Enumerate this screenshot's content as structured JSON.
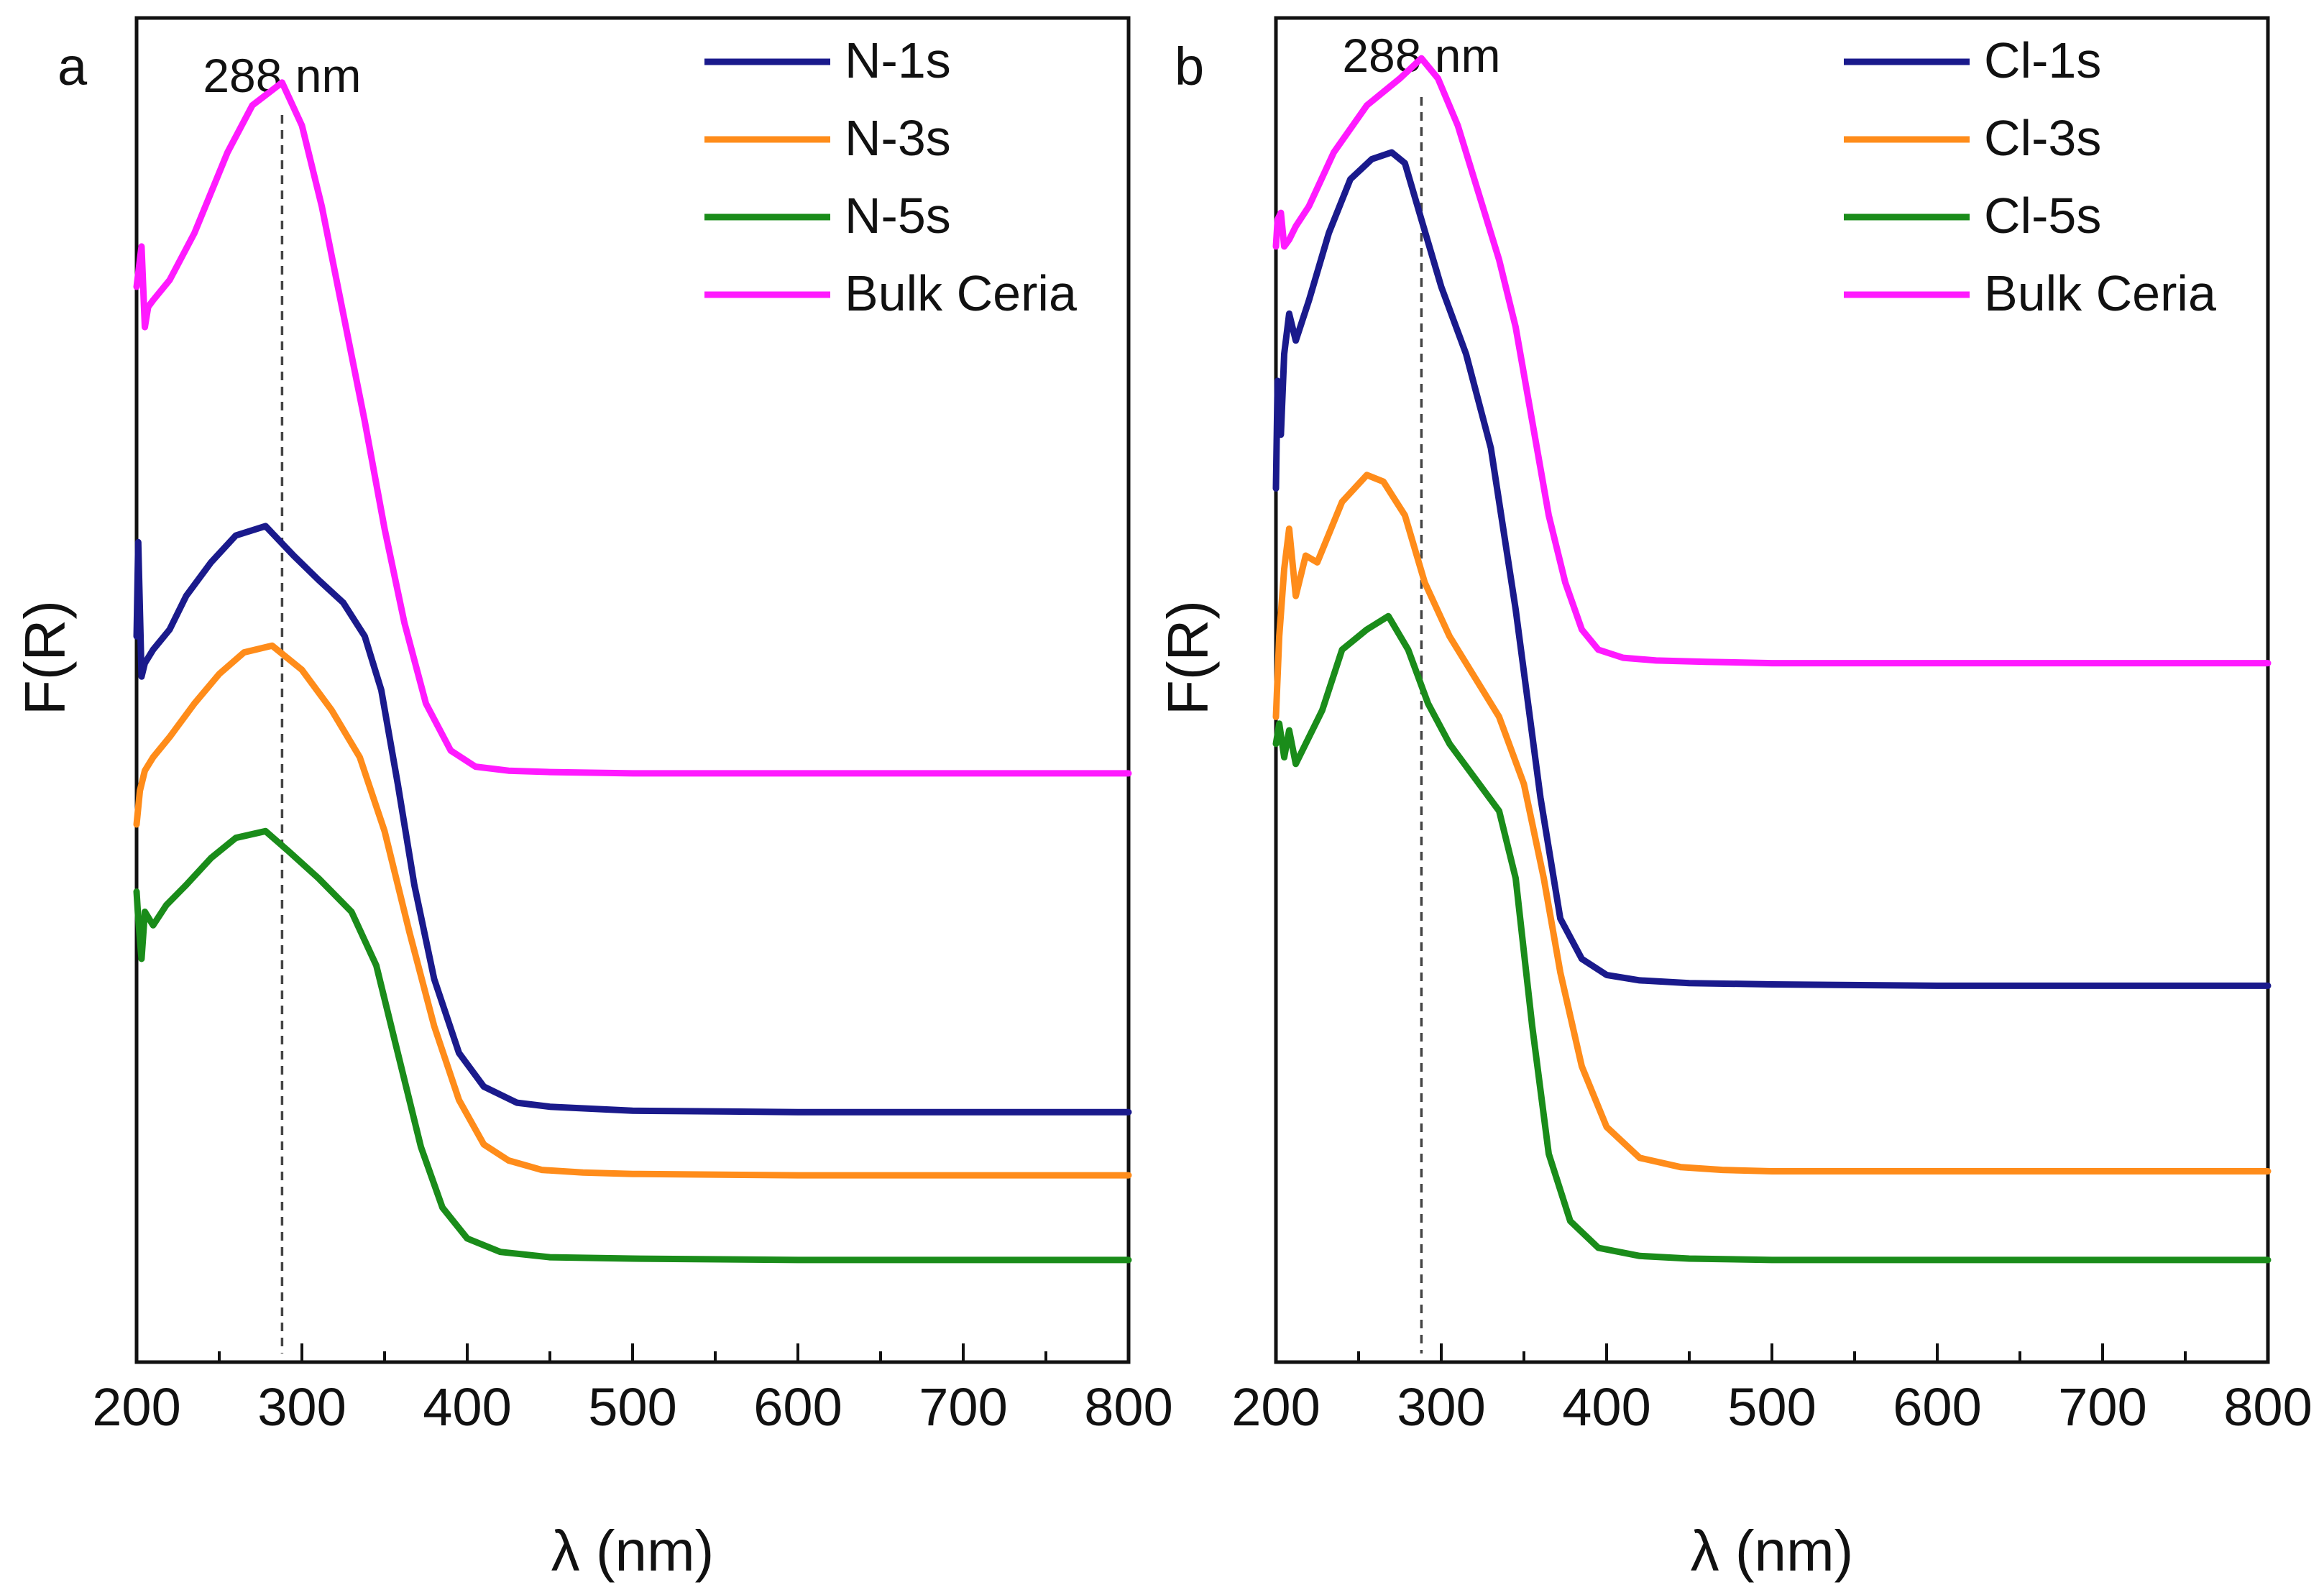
{
  "chart_data": [
    {
      "panel_label": "a",
      "type": "line",
      "title": "",
      "xlabel": "λ (nm)",
      "ylabel": "F(R)",
      "xlim": [
        200,
        800
      ],
      "ylim": [
        0,
        10
      ],
      "xticks": [
        200,
        300,
        400,
        500,
        600,
        700,
        800
      ],
      "yticks_shown": false,
      "legend_position": "top-right",
      "annotation": {
        "text": "288 nm",
        "x": 288
      },
      "series": [
        {
          "name": "N-1s",
          "color": "#1a1a8c",
          "x": [
            200,
            201,
            203,
            205,
            210,
            220,
            230,
            245,
            260,
            278,
            295,
            310,
            325,
            338,
            348,
            358,
            368,
            380,
            395,
            410,
            430,
            450,
            500,
            600,
            700,
            800
          ],
          "y": [
            5.4,
            6.1,
            5.1,
            5.2,
            5.3,
            5.45,
            5.7,
            5.95,
            6.15,
            6.22,
            6.0,
            5.82,
            5.65,
            5.4,
            5.0,
            4.3,
            3.55,
            2.85,
            2.3,
            2.05,
            1.93,
            1.9,
            1.87,
            1.86,
            1.86,
            1.86
          ]
        },
        {
          "name": "N-3s",
          "color": "#ff8c1a",
          "x": [
            200,
            202,
            205,
            210,
            220,
            235,
            250,
            265,
            282,
            300,
            318,
            335,
            350,
            365,
            380,
            395,
            410,
            425,
            445,
            470,
            500,
            600,
            700,
            800
          ],
          "y": [
            4.0,
            4.25,
            4.4,
            4.5,
            4.65,
            4.9,
            5.12,
            5.28,
            5.33,
            5.15,
            4.85,
            4.5,
            3.95,
            3.2,
            2.5,
            1.95,
            1.62,
            1.5,
            1.43,
            1.41,
            1.4,
            1.39,
            1.39,
            1.39
          ]
        },
        {
          "name": "N-5s",
          "color": "#1a8c1a",
          "x": [
            200,
            201,
            203,
            205,
            210,
            218,
            230,
            245,
            260,
            278,
            292,
            310,
            330,
            345,
            358,
            372,
            385,
            400,
            420,
            450,
            500,
            600,
            700,
            800
          ],
          "y": [
            3.5,
            3.3,
            3.0,
            3.35,
            3.25,
            3.4,
            3.55,
            3.75,
            3.9,
            3.95,
            3.8,
            3.6,
            3.35,
            2.95,
            2.3,
            1.6,
            1.15,
            0.92,
            0.82,
            0.78,
            0.77,
            0.76,
            0.76,
            0.76
          ]
        },
        {
          "name": "Bulk Ceria",
          "color": "#ff1aff",
          "x": [
            200,
            203,
            205,
            207,
            210,
            220,
            235,
            255,
            270,
            288,
            300,
            312,
            325,
            338,
            350,
            362,
            375,
            390,
            405,
            425,
            450,
            500,
            600,
            700,
            800
          ],
          "y": [
            8.0,
            8.3,
            7.7,
            7.85,
            7.9,
            8.05,
            8.4,
            9.0,
            9.35,
            9.52,
            9.2,
            8.6,
            7.8,
            7.0,
            6.2,
            5.5,
            4.9,
            4.55,
            4.43,
            4.4,
            4.39,
            4.38,
            4.38,
            4.38,
            4.38
          ]
        }
      ]
    },
    {
      "panel_label": "b",
      "type": "line",
      "title": "",
      "xlabel": "λ (nm)",
      "ylabel": "F(R)",
      "xlim": [
        200,
        800
      ],
      "ylim": [
        0,
        10
      ],
      "xticks": [
        200,
        300,
        400,
        500,
        600,
        700,
        800
      ],
      "yticks_shown": false,
      "legend_position": "top-right",
      "annotation": {
        "text": "288 nm",
        "x": 288
      },
      "series": [
        {
          "name": "Cl-1s",
          "color": "#1a1a8c",
          "x": [
            200,
            201,
            203,
            205,
            208,
            212,
            220,
            232,
            245,
            258,
            270,
            278,
            288,
            300,
            315,
            330,
            345,
            360,
            372,
            385,
            400,
            420,
            450,
            500,
            600,
            700,
            800
          ],
          "y": [
            6.5,
            7.3,
            6.9,
            7.5,
            7.8,
            7.6,
            7.9,
            8.4,
            8.8,
            8.95,
            9.0,
            8.92,
            8.5,
            8.0,
            7.5,
            6.8,
            5.6,
            4.2,
            3.3,
            3.0,
            2.88,
            2.84,
            2.82,
            2.81,
            2.8,
            2.8,
            2.8
          ]
        },
        {
          "name": "Cl-3s",
          "color": "#ff8c1a",
          "x": [
            200,
            202,
            205,
            208,
            212,
            218,
            225,
            240,
            255,
            265,
            278,
            290,
            305,
            320,
            335,
            350,
            362,
            372,
            385,
            400,
            420,
            445,
            470,
            500,
            600,
            700,
            800
          ],
          "y": [
            4.8,
            5.4,
            5.9,
            6.2,
            5.7,
            6.0,
            5.95,
            6.4,
            6.6,
            6.55,
            6.3,
            5.8,
            5.4,
            5.1,
            4.8,
            4.3,
            3.6,
            2.9,
            2.2,
            1.75,
            1.52,
            1.45,
            1.43,
            1.42,
            1.42,
            1.42,
            1.42
          ]
        },
        {
          "name": "Cl-5s",
          "color": "#1a8c1a",
          "x": [
            200,
            202,
            205,
            208,
            212,
            218,
            228,
            240,
            255,
            268,
            280,
            292,
            305,
            320,
            335,
            345,
            355,
            365,
            378,
            395,
            420,
            450,
            500,
            600,
            700,
            800
          ],
          "y": [
            4.6,
            4.75,
            4.5,
            4.7,
            4.45,
            4.6,
            4.85,
            5.3,
            5.45,
            5.55,
            5.3,
            4.9,
            4.6,
            4.35,
            4.1,
            3.6,
            2.5,
            1.55,
            1.05,
            0.85,
            0.79,
            0.77,
            0.76,
            0.76,
            0.76,
            0.76
          ]
        },
        {
          "name": "Bulk Ceria",
          "color": "#ff1aff",
          "x": [
            200,
            201,
            203,
            205,
            208,
            212,
            220,
            235,
            255,
            275,
            288,
            298,
            310,
            320,
            335,
            345,
            355,
            365,
            375,
            385,
            395,
            410,
            430,
            460,
            500,
            600,
            700,
            800
          ],
          "y": [
            8.3,
            8.5,
            8.55,
            8.3,
            8.35,
            8.45,
            8.6,
            9.0,
            9.35,
            9.55,
            9.7,
            9.55,
            9.2,
            8.8,
            8.2,
            7.7,
            7.0,
            6.3,
            5.8,
            5.45,
            5.3,
            5.24,
            5.22,
            5.21,
            5.2,
            5.2,
            5.2,
            5.2
          ]
        }
      ]
    }
  ]
}
